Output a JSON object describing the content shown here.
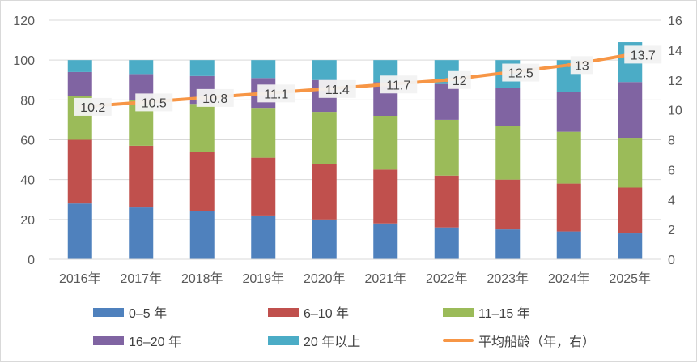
{
  "chart_data": {
    "type": "bar",
    "stacked": true,
    "categories": [
      "2016年",
      "2017年",
      "2018年",
      "2019年",
      "2020年",
      "2021年",
      "2022年",
      "2023年",
      "2024年",
      "2025年"
    ],
    "series": [
      {
        "name": "0–5 年",
        "color": "#4f81bd",
        "values": [
          28,
          26,
          24,
          22,
          20,
          18,
          16,
          15,
          14,
          13
        ]
      },
      {
        "name": "6–10 年",
        "color": "#c0504d",
        "values": [
          32,
          31,
          30,
          29,
          28,
          27,
          26,
          25,
          24,
          23
        ]
      },
      {
        "name": "11–15 年",
        "color": "#9bbb59",
        "values": [
          22,
          23,
          24,
          25,
          26,
          27,
          28,
          27,
          26,
          25
        ]
      },
      {
        "name": "16–20 年",
        "color": "#8064a2",
        "values": [
          12,
          13,
          14,
          15,
          16,
          17,
          18,
          19,
          20,
          28
        ]
      },
      {
        "name": "20 年以上",
        "color": "#4bacc6",
        "values": [
          6,
          7,
          8,
          9,
          10,
          11,
          12,
          14,
          16,
          20
        ]
      }
    ],
    "line_series": {
      "name": "平均船龄（年，右）",
      "color": "#f79646",
      "values": [
        10.2,
        10.5,
        10.8,
        11.1,
        11.4,
        11.7,
        12,
        12.5,
        13,
        13.7
      ]
    },
    "y_left": {
      "min": 0,
      "max": 120,
      "ticks": [
        "0",
        "20",
        "40",
        "60",
        "80",
        "100",
        "120"
      ]
    },
    "y_right": {
      "min": 0,
      "max": 16,
      "ticks": [
        "0",
        "2",
        "4",
        "6",
        "8",
        "10",
        "12",
        "14",
        "16"
      ]
    },
    "grid": true,
    "legend_position": "bottom"
  },
  "legend": {
    "items": [
      {
        "label": "0–5 年",
        "color": "#4f81bd",
        "kind": "box"
      },
      {
        "label": "6–10 年",
        "color": "#c0504d",
        "kind": "box"
      },
      {
        "label": "11–15 年",
        "color": "#9bbb59",
        "kind": "box"
      },
      {
        "label": "16–20 年",
        "color": "#8064a2",
        "kind": "box"
      },
      {
        "label": "20 年以上",
        "color": "#4bacc6",
        "kind": "box"
      },
      {
        "label": "平均船龄（年，右）",
        "color": "#f79646",
        "kind": "line"
      }
    ]
  }
}
